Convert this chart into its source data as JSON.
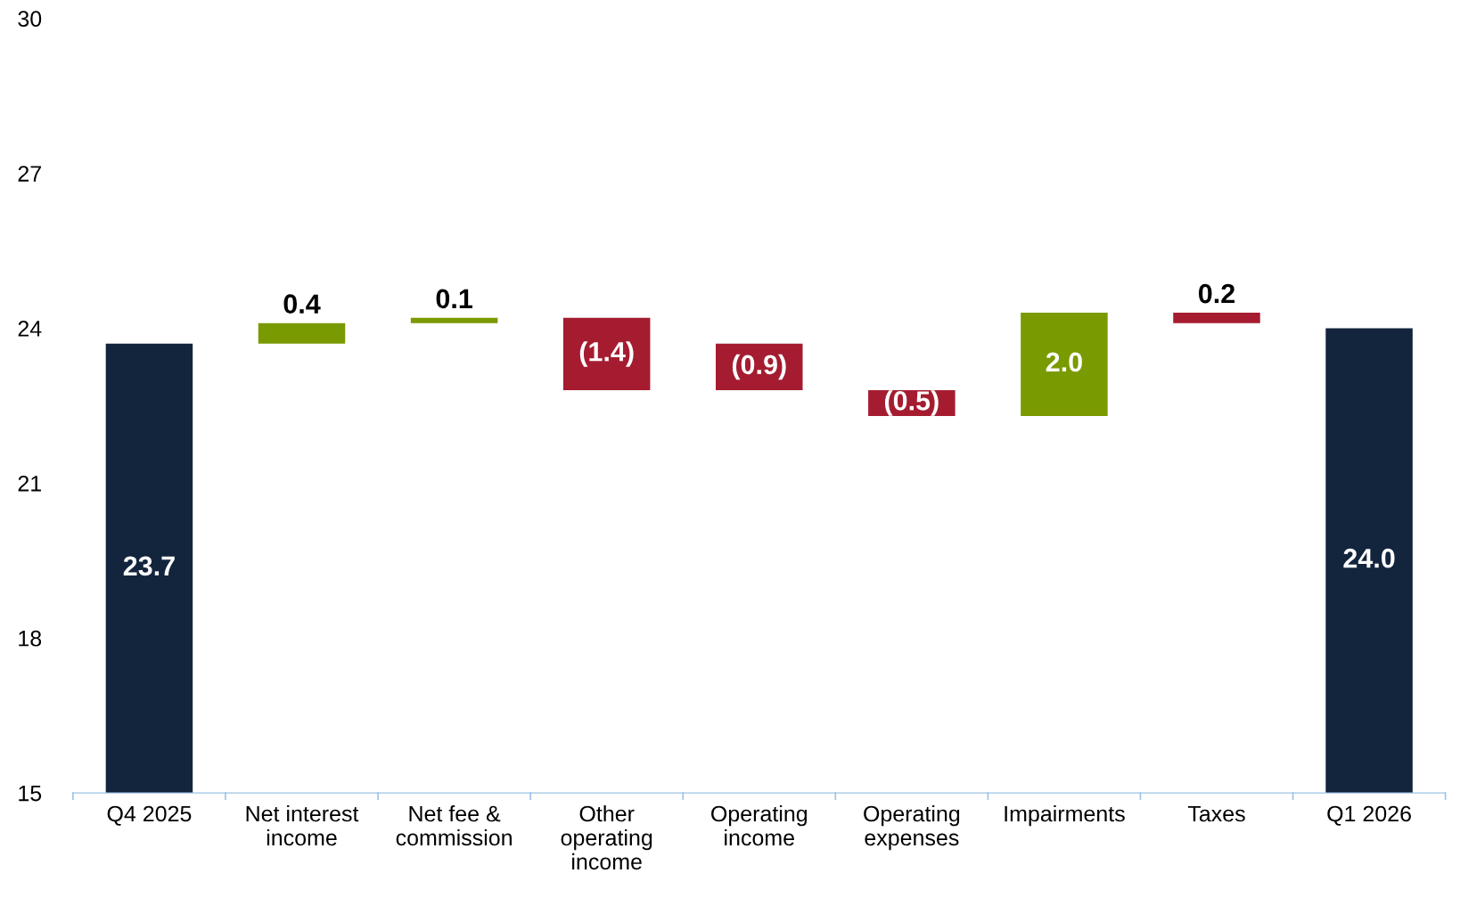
{
  "chart_data": {
    "type": "bar",
    "categories": [
      "Q4 2025",
      "Net interest\nincome",
      "Net fee &\ncommission",
      "Other\noperating\nincome",
      "Operating\nincome",
      "Operating\nexpenses",
      "Impairments",
      "Taxes",
      "Q1 2026"
    ],
    "base": [
      15,
      23.7,
      24.1,
      24.2,
      23.7,
      22.8,
      22.3,
      24.3,
      15
    ],
    "values": [
      8.7,
      0.4,
      0.1,
      -1.4,
      -0.9,
      -0.5,
      2.0,
      -0.2,
      9.0
    ],
    "colors": [
      "#13243d",
      "#7a9a01",
      "#7a9a01",
      "#a51c30",
      "#a51c30",
      "#a51c30",
      "#7a9a01",
      "#a51c30",
      "#13243d"
    ],
    "value_labels": [
      "23.7",
      "0.4",
      "0.1",
      "(1.4)",
      "(0.9)",
      "(0.5)",
      "2.0",
      "0.2",
      "24.0"
    ],
    "ylim": [
      15,
      30
    ],
    "yticks": [
      15,
      18,
      21,
      24,
      27,
      30
    ]
  }
}
